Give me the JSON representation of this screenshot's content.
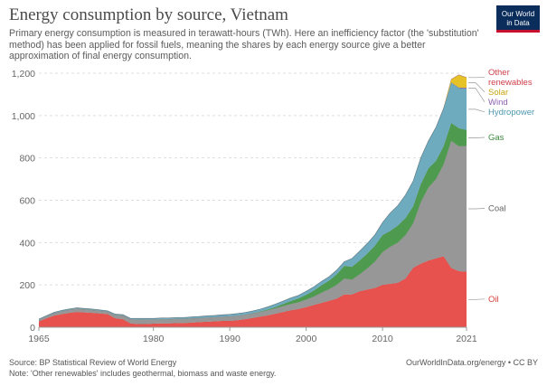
{
  "header": {
    "title": "Energy consumption by source, Vietnam",
    "subtitle": "Primary energy consumption is measured in terawatt-hours (TWh). Here an inefficiency factor (the 'substitution' method) has been applied for fossil fuels, meaning the shares by each energy source give a better approximation of final energy consumption."
  },
  "logo": {
    "line1": "Our World",
    "line2": "in Data"
  },
  "footer": {
    "source": "Source: BP Statistical Review of World Energy",
    "note": "Note: 'Other renewables' includes geothermal, biomass and waste energy.",
    "credit": "OurWorldInData.org/energy • CC BY"
  },
  "chart_data": {
    "type": "area",
    "stacked": true,
    "title": "Energy consumption by source, Vietnam",
    "xlim": [
      1965,
      2021
    ],
    "ylim": [
      0,
      1200
    ],
    "x_ticks": [
      "1965",
      "1980",
      "1990",
      "2000",
      "2010",
      "2021"
    ],
    "y_ticks": [
      "0",
      "200",
      "400",
      "600",
      "800",
      "1,000",
      "1,200"
    ],
    "grid": "horizontal dashed",
    "legend": "right, labels at series ends",
    "x": [
      1965,
      1966,
      1967,
      1968,
      1969,
      1970,
      1971,
      1972,
      1973,
      1974,
      1975,
      1976,
      1977,
      1978,
      1979,
      1980,
      1981,
      1982,
      1983,
      1984,
      1985,
      1986,
      1987,
      1988,
      1989,
      1990,
      1991,
      1992,
      1993,
      1994,
      1995,
      1996,
      1997,
      1998,
      1999,
      2000,
      2001,
      2002,
      2003,
      2004,
      2005,
      2006,
      2007,
      2008,
      2009,
      2010,
      2011,
      2012,
      2013,
      2014,
      2015,
      2016,
      2017,
      2018,
      2019,
      2020,
      2021
    ],
    "series": [
      {
        "name": "Oil",
        "color": "#e8524e",
        "values": [
          28,
          42,
          55,
          62,
          68,
          72,
          70,
          68,
          65,
          62,
          42,
          38,
          18,
          15,
          15,
          17,
          18,
          18,
          20,
          20,
          22,
          24,
          26,
          28,
          30,
          30,
          33,
          38,
          44,
          50,
          56,
          64,
          72,
          80,
          86,
          95,
          105,
          115,
          125,
          135,
          155,
          155,
          170,
          178,
          185,
          200,
          205,
          210,
          230,
          280,
          300,
          315,
          325,
          335,
          280,
          265,
          262
        ]
      },
      {
        "name": "Coal",
        "color": "#979797",
        "values": [
          8,
          10,
          12,
          14,
          15,
          16,
          15,
          14,
          13,
          12,
          16,
          18,
          20,
          22,
          22,
          20,
          20,
          20,
          20,
          20,
          20,
          20,
          20,
          20,
          20,
          22,
          22,
          22,
          22,
          22,
          24,
          26,
          28,
          30,
          32,
          36,
          40,
          48,
          55,
          65,
          75,
          70,
          80,
          100,
          125,
          155,
          175,
          190,
          205,
          210,
          290,
          345,
          375,
          435,
          600,
          590,
          595
        ]
      },
      {
        "name": "Gas",
        "color": "#4e9a4e",
        "values": [
          0,
          0,
          0,
          0,
          0,
          0,
          0,
          0,
          0,
          0,
          0,
          0,
          0,
          0,
          0,
          0,
          0,
          0,
          0,
          0,
          0,
          0,
          0,
          0,
          0,
          0,
          0,
          0,
          0,
          2,
          4,
          6,
          10,
          14,
          18,
          22,
          28,
          35,
          40,
          50,
          60,
          60,
          65,
          70,
          75,
          80,
          75,
          80,
          80,
          80,
          85,
          90,
          85,
          85,
          85,
          85,
          75
        ]
      },
      {
        "name": "Hydropower",
        "color": "#6fabbe",
        "values": [
          3,
          3,
          4,
          4,
          4,
          4,
          4,
          4,
          4,
          4,
          4,
          4,
          4,
          5,
          5,
          5,
          6,
          6,
          6,
          6,
          7,
          7,
          8,
          8,
          9,
          9,
          10,
          10,
          11,
          12,
          13,
          14,
          14,
          15,
          15,
          17,
          18,
          19,
          19,
          20,
          20,
          40,
          45,
          48,
          52,
          60,
          85,
          95,
          110,
          120,
          125,
          130,
          160,
          180,
          190,
          190,
          195
        ]
      },
      {
        "name": "Wind",
        "color": "#8e5fb0",
        "values": [
          0,
          0,
          0,
          0,
          0,
          0,
          0,
          0,
          0,
          0,
          0,
          0,
          0,
          0,
          0,
          0,
          0,
          0,
          0,
          0,
          0,
          0,
          0,
          0,
          0,
          0,
          0,
          0,
          0,
          0,
          0,
          0,
          0,
          0,
          0,
          0,
          0,
          0,
          0,
          0,
          0,
          0,
          0,
          0,
          0,
          0,
          0,
          0,
          0,
          0,
          0,
          0,
          0,
          0,
          1,
          2,
          4
        ]
      },
      {
        "name": "Solar",
        "color": "#e6c229",
        "values": [
          0,
          0,
          0,
          0,
          0,
          0,
          0,
          0,
          0,
          0,
          0,
          0,
          0,
          0,
          0,
          0,
          0,
          0,
          0,
          0,
          0,
          0,
          0,
          0,
          0,
          0,
          0,
          0,
          0,
          0,
          0,
          0,
          0,
          0,
          0,
          0,
          0,
          0,
          0,
          0,
          0,
          0,
          0,
          0,
          0,
          0,
          0,
          0,
          0,
          0,
          0,
          0,
          0,
          0,
          15,
          60,
          48
        ]
      },
      {
        "name": "Other renewables",
        "color": "#cf3f48",
        "values": [
          0,
          0,
          0,
          0,
          0,
          0,
          0,
          0,
          0,
          0,
          0,
          0,
          0,
          0,
          0,
          0,
          0,
          0,
          0,
          0,
          0,
          0,
          0,
          0,
          0,
          0,
          0,
          0,
          0,
          0,
          0,
          0,
          0,
          0,
          0,
          0,
          0,
          0,
          0,
          0,
          0,
          0,
          0,
          0,
          0,
          0,
          0,
          0,
          0,
          0,
          0,
          0,
          0,
          0,
          1,
          1,
          1
        ]
      }
    ],
    "end_labels": [
      {
        "series": "Other renewables",
        "lines": [
          "Other",
          "renewables"
        ],
        "color": "#cf3f48"
      },
      {
        "series": "Solar",
        "lines": [
          "Solar"
        ],
        "color": "#c9a613"
      },
      {
        "series": "Wind",
        "lines": [
          "Wind"
        ],
        "color": "#8e5fb0"
      },
      {
        "series": "Hydropower",
        "lines": [
          "Hydropower"
        ],
        "color": "#4f97ad"
      },
      {
        "series": "Gas",
        "lines": [
          "Gas"
        ],
        "color": "#3c8a3c"
      },
      {
        "series": "Coal",
        "lines": [
          "Coal"
        ],
        "color": "#666666"
      },
      {
        "series": "Oil",
        "lines": [
          "Oil"
        ],
        "color": "#d9403c"
      }
    ]
  }
}
